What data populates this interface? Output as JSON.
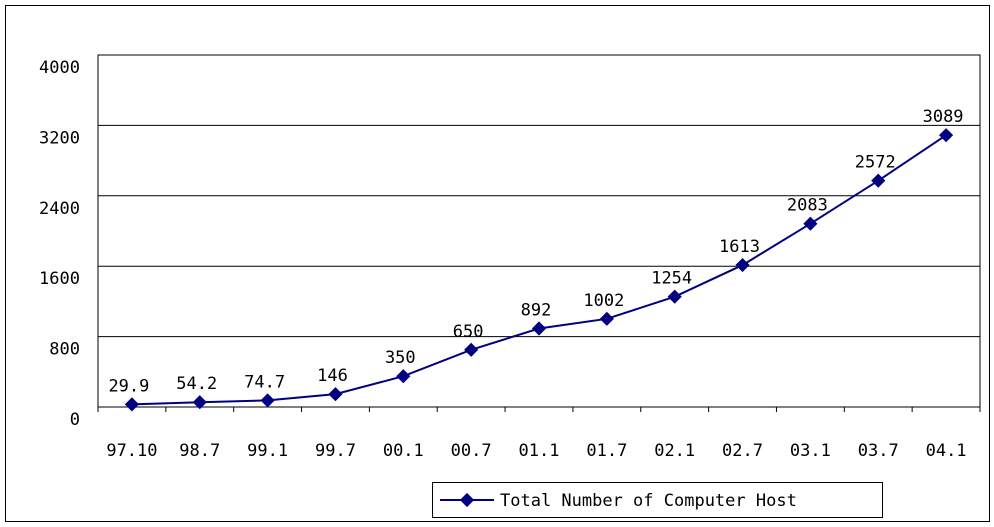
{
  "chart_data": {
    "type": "line",
    "categories": [
      "97.10",
      "98.7",
      "99.1",
      "99.7",
      "00.1",
      "00.7",
      "01.1",
      "01.7",
      "02.1",
      "02.7",
      "03.1",
      "03.7",
      "04.1"
    ],
    "series": [
      {
        "name": "Total Number of Computer Host",
        "color": "#000080",
        "values": [
          29.9,
          54.2,
          74.7,
          146,
          350,
          650,
          892,
          1002,
          1254,
          1613,
          2083,
          2572,
          3089
        ]
      }
    ],
    "ylim": [
      0,
      4000
    ],
    "yticks": [
      0,
      800,
      1600,
      2400,
      3200,
      4000
    ],
    "grid": true,
    "legend": "bottom",
    "data_labels": true
  }
}
